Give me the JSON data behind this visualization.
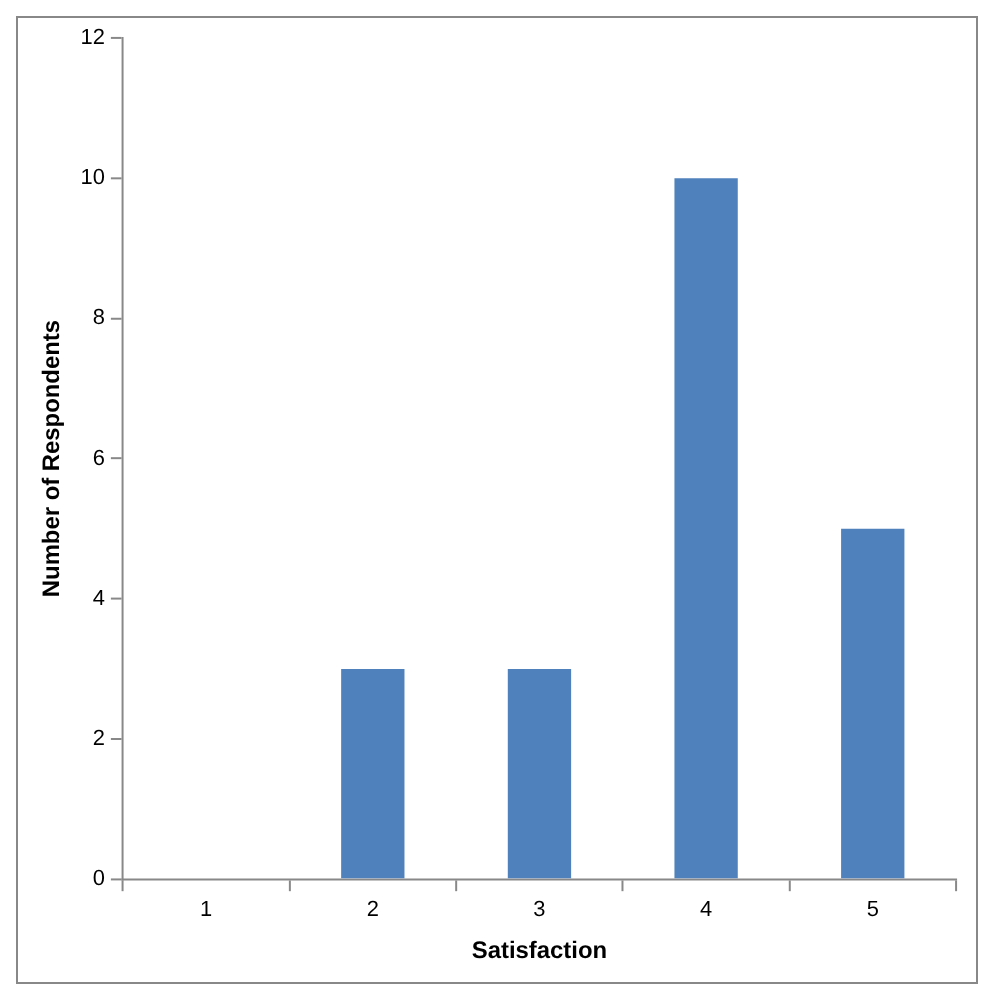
{
  "chart_data": {
    "type": "bar",
    "xlabel": "Satisfaction",
    "ylabel": "Number of Respondents",
    "categories": [
      "1",
      "2",
      "3",
      "4",
      "5"
    ],
    "values": [
      0,
      3,
      3,
      10,
      5
    ],
    "color": "#4f81bd",
    "ylim": [
      0,
      12
    ],
    "yticks": [
      0,
      2,
      4,
      6,
      8,
      10,
      12
    ],
    "grid": false,
    "legend": false
  }
}
